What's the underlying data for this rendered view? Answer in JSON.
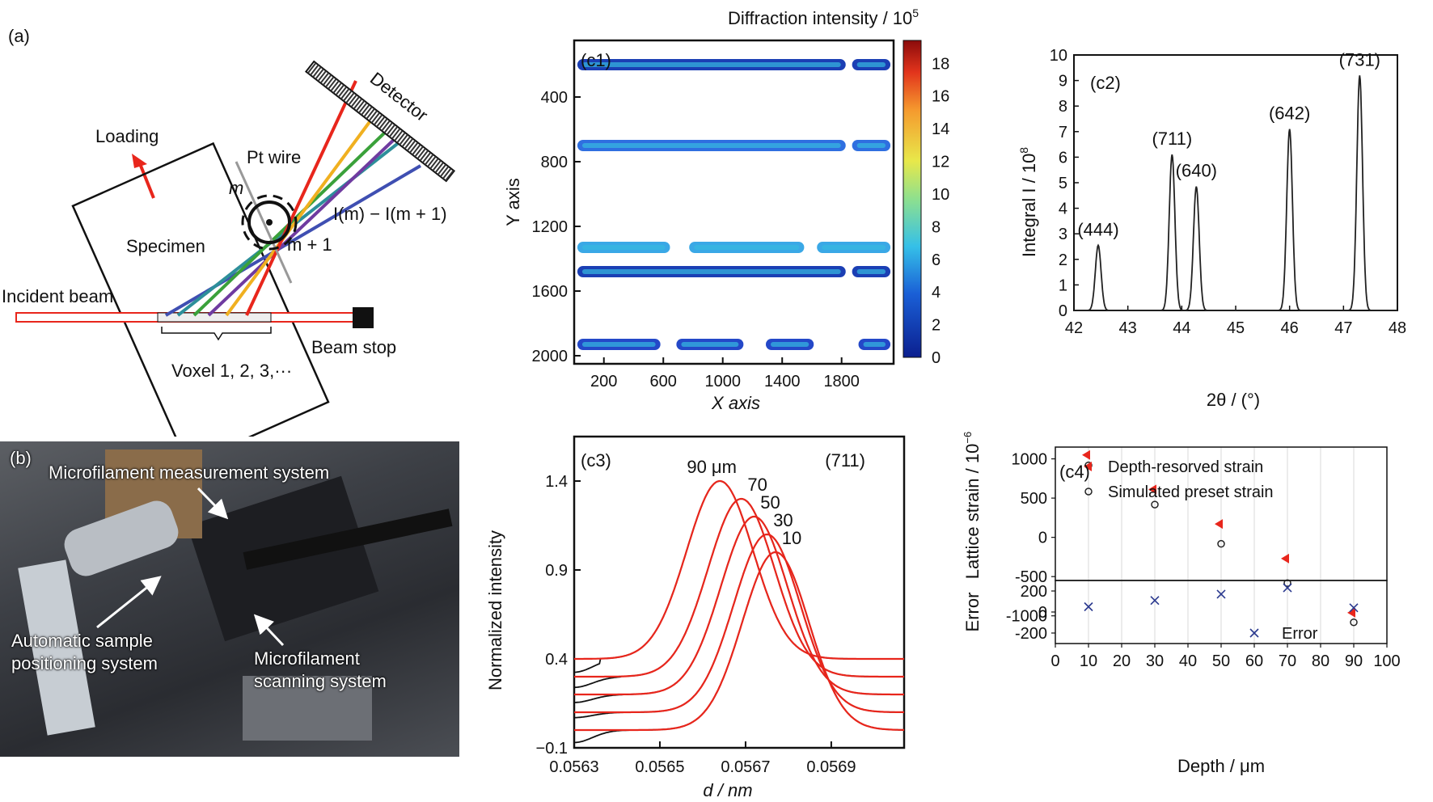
{
  "panel_a": {
    "label": "(a)",
    "loading": "Loading",
    "pt_wire": "Pt wire",
    "m": "m",
    "m_plus_1": "m + 1",
    "intensity_diff": "I(m) − I(m + 1)",
    "detector": "Detector",
    "specimen": "Specimen",
    "incident_beam": "Incident beam",
    "beam_stop": "Beam stop",
    "voxel": "Voxel 1, 2, 3,···"
  },
  "panel_b": {
    "label": "(b)",
    "microfilament_measurement": "Microfilament measurement system",
    "auto_positioning_1": "Automatic sample",
    "auto_positioning_2": "positioning system",
    "microfilament_scanning_1": "Microfilament",
    "microfilament_scanning_2": "scanning system"
  },
  "chart_data": [
    {
      "id": "c1",
      "type": "heatmap",
      "label": "(c1)",
      "title": "Diffraction intensity / 10",
      "title_sup": "5",
      "xlabel": "X axis",
      "ylabel": "Y axis",
      "xticks": [
        "200",
        "600",
        "1000",
        "1400",
        "1800"
      ],
      "yticks": [
        "400",
        "800",
        "1200",
        "1600",
        "2000"
      ],
      "colorbar_ticks": [
        "18",
        "16",
        "14",
        "12",
        "10",
        "8",
        "6",
        "4",
        "2",
        "0"
      ],
      "bands_y": [
        200,
        700,
        1330,
        1480,
        1930
      ]
    },
    {
      "id": "c2",
      "type": "line",
      "label": "(c2)",
      "xlabel": "2θ / (°)",
      "ylabel": "Integral I / 10",
      "ylabel_sup": "8",
      "xlim": [
        42,
        48
      ],
      "ylim": [
        0,
        10
      ],
      "xticks": [
        "42",
        "43",
        "44",
        "45",
        "46",
        "47",
        "48"
      ],
      "yticks": [
        "0",
        "1",
        "2",
        "3",
        "4",
        "5",
        "6",
        "7",
        "8",
        "9",
        "10"
      ],
      "peaks": [
        {
          "label": "(444)",
          "x": 42.45,
          "y": 2.55
        },
        {
          "label": "(711)",
          "x": 43.82,
          "y": 6.1
        },
        {
          "label": "(640)",
          "x": 44.27,
          "y": 4.85
        },
        {
          "label": "(642)",
          "x": 46.0,
          "y": 7.1
        },
        {
          "label": "(731)",
          "x": 47.3,
          "y": 9.2
        }
      ]
    },
    {
      "id": "c3",
      "type": "line",
      "label": "(c3)",
      "reflection": "(711)",
      "xlabel": "d / nm",
      "ylabel": "Normalized intensity",
      "xlim": [
        0.0563,
        0.05707
      ],
      "ylim": [
        -0.1,
        1.65
      ],
      "xticks": [
        "0.0563",
        "0.0565",
        "0.0567",
        "0.0569"
      ],
      "yticks": [
        "−0.1",
        "0.4",
        "0.9",
        "1.4"
      ],
      "series": [
        {
          "name": "90 μm",
          "center": 0.05664,
          "peak": 1.4,
          "base": 0.4
        },
        {
          "name": "70",
          "center": 0.05669,
          "peak": 1.3,
          "base": 0.3
        },
        {
          "name": "50",
          "center": 0.05672,
          "peak": 1.2,
          "base": 0.2
        },
        {
          "name": "30",
          "center": 0.05675,
          "peak": 1.1,
          "base": 0.1
        },
        {
          "name": "10",
          "center": 0.05677,
          "peak": 1.0,
          "base": 0.0
        }
      ]
    },
    {
      "id": "c4",
      "type": "scatter",
      "label": "(c4)",
      "xlabel": "Depth / μm",
      "ylabel": "Lattice strain / 10",
      "ylabel_sup": "−6",
      "ylabel_error": "Error",
      "xlim": [
        0,
        100
      ],
      "ylim": [
        -1250,
        1150
      ],
      "error_ylim": [
        -300,
        300
      ],
      "xticks": [
        "0",
        "10",
        "20",
        "30",
        "40",
        "50",
        "60",
        "70",
        "80",
        "90",
        "100"
      ],
      "yticks": [
        "1000",
        "500",
        "0",
        "-500",
        "-1000"
      ],
      "error_yticks": [
        "200",
        "0",
        "-200"
      ],
      "legend": [
        "Depth-resorved strain",
        "Simulated preset strain"
      ],
      "error_legend": "Error",
      "depth_resolved": [
        {
          "x": 10,
          "y": 1050
        },
        {
          "x": 30,
          "y": 610
        },
        {
          "x": 50,
          "y": 170
        },
        {
          "x": 70,
          "y": -270
        },
        {
          "x": 90,
          "y": -960
        }
      ],
      "simulated": [
        {
          "x": 10,
          "y": 1000
        },
        {
          "x": 30,
          "y": 500
        },
        {
          "x": 50,
          "y": 0
        },
        {
          "x": 70,
          "y": -500
        },
        {
          "x": 90,
          "y": -1000
        }
      ],
      "error": [
        {
          "x": 10,
          "y": 50
        },
        {
          "x": 30,
          "y": 110
        },
        {
          "x": 50,
          "y": 170
        },
        {
          "x": 70,
          "y": 230
        },
        {
          "x": 90,
          "y": 40
        }
      ],
      "error_legend_marker": {
        "x": 60,
        "y": -200
      },
      "colors": {
        "resolved": "#e8261c",
        "simulated": "#222222",
        "error": "#2b3a8f"
      }
    }
  ]
}
